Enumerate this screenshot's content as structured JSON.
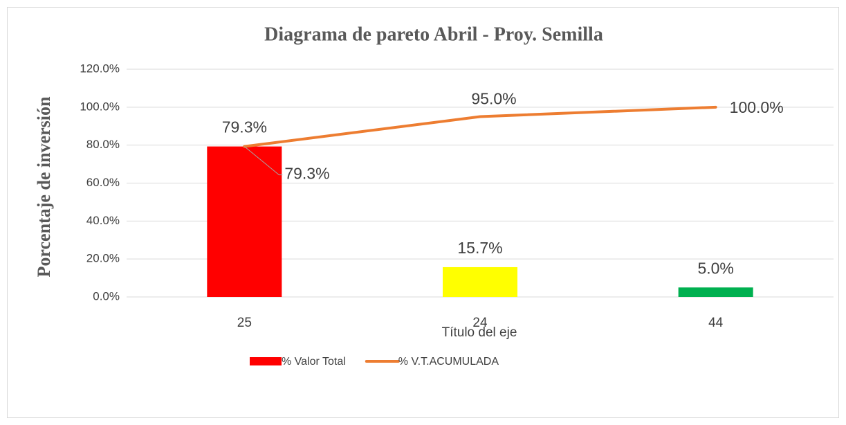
{
  "chart_data": {
    "type": "bar",
    "title": "Diagrama de pareto Abril - Proy. Semilla",
    "ylabel": "Porcentaje de inversión",
    "xlabel": "Título del eje",
    "categories": [
      "25",
      "24",
      "44"
    ],
    "series": [
      {
        "name": "% Valor Total",
        "type": "bar",
        "colors": [
          "#ff0000",
          "#ffff00",
          "#00b050"
        ],
        "values": [
          79.3,
          15.7,
          5.0
        ],
        "value_labels": [
          "79.3%",
          "15.7%",
          "5.0%"
        ]
      },
      {
        "name": "% V.T.ACUMULADA",
        "type": "line",
        "color": "#ed7d31",
        "values": [
          79.3,
          95.0,
          100.0
        ],
        "value_labels": [
          "79.3%",
          "95.0%",
          "100.0%"
        ]
      }
    ],
    "ylim": [
      0,
      120
    ],
    "yticks": [
      {
        "value": 0,
        "label": "0.0%"
      },
      {
        "value": 20,
        "label": "20.0%"
      },
      {
        "value": 40,
        "label": "40.0%"
      },
      {
        "value": 60,
        "label": "60.0%"
      },
      {
        "value": 80,
        "label": "80.0%"
      },
      {
        "value": 100,
        "label": "100.0%"
      },
      {
        "value": 120,
        "label": "120.0%"
      }
    ],
    "grid": true,
    "legend": "bottom"
  }
}
